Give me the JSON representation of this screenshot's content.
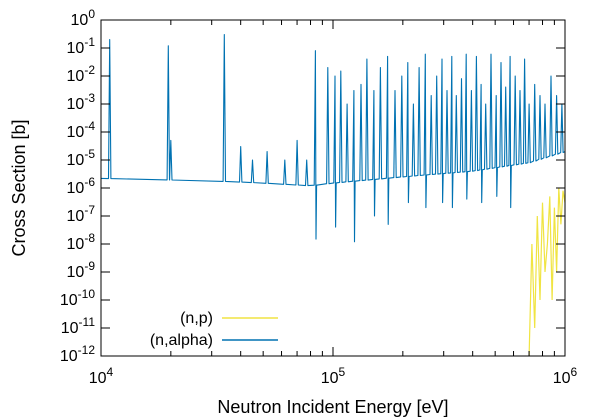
{
  "chart_data": {
    "type": "line",
    "xlabel": "Neutron Incident Energy [eV]",
    "ylabel": "Cross Section [b]",
    "xscale": "log",
    "yscale": "log",
    "xlim": [
      10000,
      1000000
    ],
    "ylim": [
      1e-12,
      1
    ],
    "x_ticks": [
      {
        "base": "10",
        "exp": "4",
        "value": 10000
      },
      {
        "base": "10",
        "exp": "5",
        "value": 100000
      },
      {
        "base": "10",
        "exp": "6",
        "value": 1000000
      }
    ],
    "y_ticks": [
      {
        "base": "10",
        "exp": "0",
        "value": 1
      },
      {
        "base": "10",
        "exp": "-1",
        "value": 0.1
      },
      {
        "base": "10",
        "exp": "-2",
        "value": 0.01
      },
      {
        "base": "10",
        "exp": "-3",
        "value": 0.001
      },
      {
        "base": "10",
        "exp": "-4",
        "value": 0.0001
      },
      {
        "base": "10",
        "exp": "-5",
        "value": 1e-05
      },
      {
        "base": "10",
        "exp": "-6",
        "value": 1e-06
      },
      {
        "base": "10",
        "exp": "-7",
        "value": 1e-07
      },
      {
        "base": "10",
        "exp": "-8",
        "value": 1e-08
      },
      {
        "base": "10",
        "exp": "-9",
        "value": 1e-09
      },
      {
        "base": "10",
        "exp": "-10",
        "value": 1e-10
      },
      {
        "base": "10",
        "exp": "-11",
        "value": 1e-11
      },
      {
        "base": "10",
        "exp": "-12",
        "value": 1e-12
      }
    ],
    "grid": false,
    "legend_position": "bottom-left",
    "series": [
      {
        "name": "(n,p)",
        "color": "#f0e442",
        "x": [
          700000,
          720000,
          740000,
          760000,
          780000,
          800000,
          820000,
          840000,
          860000,
          880000,
          900000,
          920000,
          940000,
          960000,
          980000,
          1000000
        ],
        "y": [
          1e-12,
          1e-08,
          1e-11,
          1e-07,
          1e-10,
          3e-07,
          1e-09,
          1e-08,
          5e-07,
          1e-10,
          2e-07,
          1e-09,
          1e-06,
          5e-08,
          8e-07,
          3e-07
        ]
      },
      {
        "name": "(n,alpha)",
        "color": "#0072b2",
        "baseline": [
          [
            10000,
            2.2e-06
          ],
          [
            30000,
            1.8e-06
          ],
          [
            50000,
            1.5e-06
          ],
          [
            80000,
            1.2e-06
          ],
          [
            100000,
            1.5e-06
          ],
          [
            200000,
            2.5e-06
          ],
          [
            400000,
            4e-06
          ],
          [
            700000,
            8e-06
          ],
          [
            1000000,
            2e-05
          ]
        ],
        "resonances": [
          {
            "x": 10900,
            "peak": 0.2,
            "dip": 0
          },
          {
            "x": 20000,
            "peak": 5e-05,
            "dip": 0
          },
          {
            "x": 19500,
            "peak": 0.12,
            "dip": 0
          },
          {
            "x": 34000,
            "peak": 0.3,
            "dip": 0
          },
          {
            "x": 40000,
            "peak": 3e-05,
            "dip": 0
          },
          {
            "x": 45000,
            "peak": 1e-05,
            "dip": 0
          },
          {
            "x": 52000,
            "peak": 2e-05,
            "dip": 0
          },
          {
            "x": 62000,
            "peak": 1e-05,
            "dip": 0
          },
          {
            "x": 70000,
            "peak": 5e-05,
            "dip": 0
          },
          {
            "x": 77000,
            "peak": 1e-05,
            "dip": 0
          },
          {
            "x": 84000,
            "peak": 0.08,
            "dip": 1.5e-08
          },
          {
            "x": 95000,
            "peak": 0.02,
            "dip": 0
          },
          {
            "x": 102000,
            "peak": 0.01,
            "dip": 4e-08
          },
          {
            "x": 108000,
            "peak": 0.015,
            "dip": 0
          },
          {
            "x": 115000,
            "peak": 0.001,
            "dip": 0
          },
          {
            "x": 123000,
            "peak": 0.003,
            "dip": 1.2e-08
          },
          {
            "x": 132000,
            "peak": 0.005,
            "dip": 0
          },
          {
            "x": 140000,
            "peak": 0.04,
            "dip": 0
          },
          {
            "x": 150000,
            "peak": 0.003,
            "dip": 1e-07
          },
          {
            "x": 160000,
            "peak": 0.02,
            "dip": 0
          },
          {
            "x": 172000,
            "peak": 0.05,
            "dip": 5e-08
          },
          {
            "x": 185000,
            "peak": 0.003,
            "dip": 0
          },
          {
            "x": 198000,
            "peak": 0.01,
            "dip": 0
          },
          {
            "x": 210000,
            "peak": 0.03,
            "dip": 3e-07
          },
          {
            "x": 222000,
            "peak": 0.001,
            "dip": 0
          },
          {
            "x": 235000,
            "peak": 0.02,
            "dip": 0
          },
          {
            "x": 250000,
            "peak": 0.06,
            "dip": 2e-07
          },
          {
            "x": 265000,
            "peak": 0.002,
            "dip": 0
          },
          {
            "x": 280000,
            "peak": 0.01,
            "dip": 0
          },
          {
            "x": 295000,
            "peak": 0.04,
            "dip": 3e-07
          },
          {
            "x": 310000,
            "peak": 0.003,
            "dip": 0
          },
          {
            "x": 325000,
            "peak": 0.05,
            "dip": 2e-07
          },
          {
            "x": 340000,
            "peak": 0.002,
            "dip": 0
          },
          {
            "x": 358000,
            "peak": 0.008,
            "dip": 0
          },
          {
            "x": 375000,
            "peak": 0.06,
            "dip": 4e-07
          },
          {
            "x": 395000,
            "peak": 0.003,
            "dip": 0
          },
          {
            "x": 415000,
            "peak": 0.05,
            "dip": 0
          },
          {
            "x": 435000,
            "peak": 0.005,
            "dip": 3e-07
          },
          {
            "x": 455000,
            "peak": 0.001,
            "dip": 0
          },
          {
            "x": 480000,
            "peak": 0.06,
            "dip": 0
          },
          {
            "x": 505000,
            "peak": 0.002,
            "dip": 5e-07
          },
          {
            "x": 530000,
            "peak": 0.03,
            "dip": 0
          },
          {
            "x": 555000,
            "peak": 0.004,
            "dip": 0
          },
          {
            "x": 580000,
            "peak": 0.05,
            "dip": 2e-07
          },
          {
            "x": 610000,
            "peak": 0.01,
            "dip": 0
          },
          {
            "x": 640000,
            "peak": 0.003,
            "dip": 0
          },
          {
            "x": 670000,
            "peak": 0.04,
            "dip": 0
          },
          {
            "x": 700000,
            "peak": 0.001,
            "dip": 0
          },
          {
            "x": 740000,
            "peak": 0.005,
            "dip": 0
          },
          {
            "x": 780000,
            "peak": 0.002,
            "dip": 0
          },
          {
            "x": 820000,
            "peak": 0.001,
            "dip": 0
          },
          {
            "x": 870000,
            "peak": 0.01,
            "dip": 0
          },
          {
            "x": 920000,
            "peak": 0.002,
            "dip": 0
          },
          {
            "x": 970000,
            "peak": 0.001,
            "dip": 0
          }
        ]
      }
    ]
  }
}
